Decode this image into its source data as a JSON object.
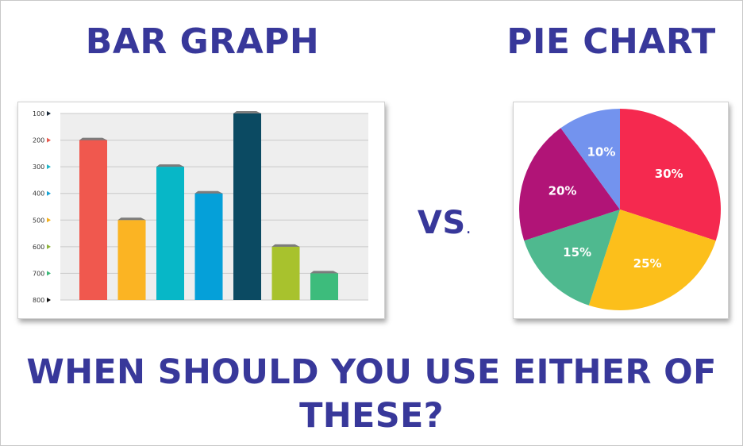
{
  "headings": {
    "bar_title": "BAR GRAPH",
    "pie_title": "PIE CHART",
    "vs": "VS",
    "vs_dot": ".",
    "question": "WHEN SHOULD YOU USE EITHER OF THESE?"
  },
  "chart_data": [
    {
      "type": "bar",
      "title": "",
      "xlabel": "",
      "ylabel": "",
      "y_axis": "inverted",
      "ylim": [
        100,
        800
      ],
      "y_ticks": [
        "100",
        "200",
        "300",
        "400",
        "500",
        "600",
        "700",
        "800"
      ],
      "tick_marker_colors": [
        "#1a2a3a",
        "#e85a4f",
        "#1fb5c8",
        "#1aa3d4",
        "#f2b01e",
        "#8db33a",
        "#3cb878",
        "#111111"
      ],
      "grid": true,
      "values": [
        200,
        500,
        300,
        400,
        100,
        600,
        700
      ],
      "colors": [
        "#f0584e",
        "#fbb423",
        "#07b7c7",
        "#05a0d9",
        "#0b4a62",
        "#a8c22d",
        "#3dbc7c"
      ]
    },
    {
      "type": "pie",
      "title": "",
      "values": [
        30,
        25,
        15,
        20,
        10
      ],
      "labels": [
        "30%",
        "25%",
        "15%",
        "20%",
        "10%"
      ],
      "colors": [
        "#f5294f",
        "#fcbf1b",
        "#4fb98f",
        "#b11477",
        "#7393ee"
      ]
    }
  ]
}
